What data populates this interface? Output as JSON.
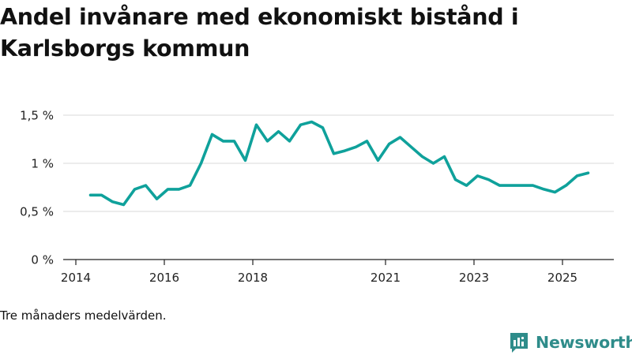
{
  "title": "Andel invånare med ekonomiskt bistånd i Karlsborgs kommun",
  "note": "Tre månaders medelvärden.",
  "brand": {
    "name": "Newsworthy",
    "color": "#2e8c8a",
    "icon": "newsworthy-logo-icon"
  },
  "colors": {
    "line": "#0fa19b",
    "grid": "#d9d9d9",
    "axis": "#222222"
  },
  "chart_data": {
    "type": "line",
    "title": "Andel invånare med ekonomiskt bistånd i Karlsborgs kommun",
    "xlabel": "",
    "ylabel": "",
    "grid": true,
    "ylim": [
      0,
      1.5
    ],
    "xlim": [
      2014,
      2026.2
    ],
    "yticks": [
      {
        "value": 0,
        "label": "0 %"
      },
      {
        "value": 0.5,
        "label": "0,5 %"
      },
      {
        "value": 1,
        "label": "1 %"
      },
      {
        "value": 1.5,
        "label": "1,5 %"
      }
    ],
    "xticks": [
      {
        "value": 2014,
        "label": "2014"
      },
      {
        "value": 2016,
        "label": "2016"
      },
      {
        "value": 2018,
        "label": "2018"
      },
      {
        "value": 2021,
        "label": "2021"
      },
      {
        "value": 2023,
        "label": "2023"
      },
      {
        "value": 2025,
        "label": "2025"
      }
    ],
    "series": [
      {
        "name": "Andel invånare med ekonomiskt bistånd",
        "x": [
          2014.33,
          2014.58,
          2014.83,
          2015.08,
          2015.33,
          2015.58,
          2015.83,
          2016.08,
          2016.33,
          2016.58,
          2016.83,
          2017.08,
          2017.33,
          2017.58,
          2017.83,
          2018.08,
          2018.33,
          2018.58,
          2018.83,
          2019.08,
          2019.33,
          2019.58,
          2019.83,
          2020.08,
          2020.33,
          2020.58,
          2020.83,
          2021.08,
          2021.33,
          2021.58,
          2021.83,
          2022.08,
          2022.33,
          2022.58,
          2022.83,
          2023.08,
          2023.33,
          2023.58,
          2023.83,
          2024.08,
          2024.33,
          2024.58,
          2024.83,
          2025.08,
          2025.33,
          2025.58
        ],
        "values": [
          0.67,
          0.67,
          0.6,
          0.57,
          0.73,
          0.77,
          0.63,
          0.73,
          0.73,
          0.77,
          1.0,
          1.3,
          1.23,
          1.23,
          1.03,
          1.4,
          1.23,
          1.33,
          1.23,
          1.4,
          1.43,
          1.37,
          1.1,
          1.13,
          1.17,
          1.23,
          1.03,
          1.2,
          1.27,
          1.17,
          1.07,
          1.0,
          1.07,
          0.83,
          0.77,
          0.87,
          0.83,
          0.77,
          0.77,
          0.77,
          0.77,
          0.73,
          0.7,
          0.77,
          0.87,
          0.9
        ]
      }
    ]
  }
}
